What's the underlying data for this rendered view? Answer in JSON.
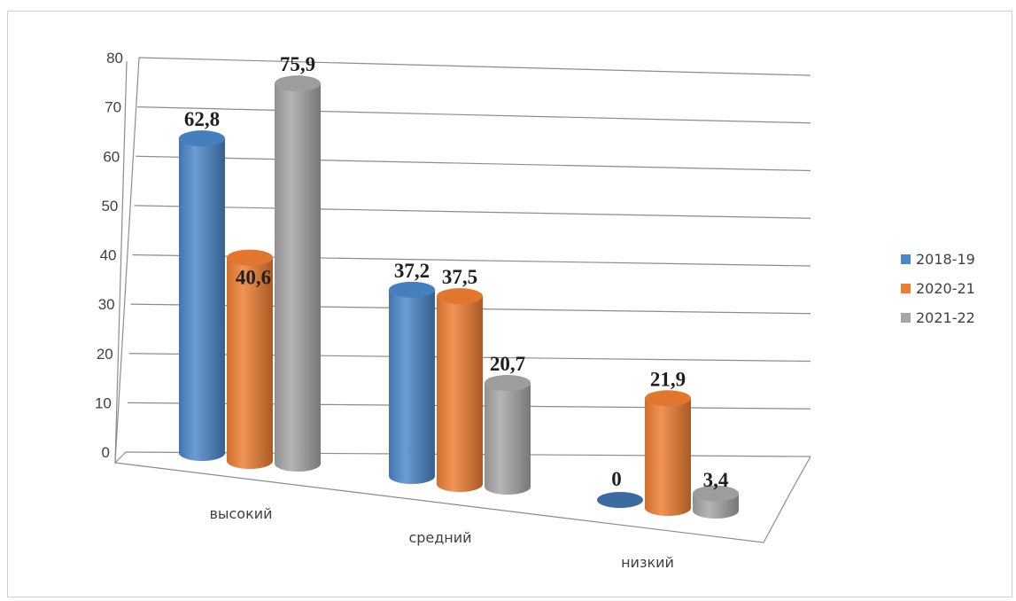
{
  "chart_data": {
    "type": "bar",
    "style": "3d-cylinder",
    "categories": [
      "высокий",
      "средний",
      "низкий"
    ],
    "series": [
      {
        "name": "2018-19",
        "values": [
          62.8,
          37.2,
          0
        ],
        "labels": [
          "62,8",
          "37,2",
          "0"
        ],
        "color": "#4a86c8"
      },
      {
        "name": "2020-21",
        "values": [
          40.6,
          37.5,
          21.9
        ],
        "labels": [
          "40,6",
          "37,5",
          "21,9"
        ],
        "color": "#ed7d31"
      },
      {
        "name": "2021-22",
        "values": [
          75.9,
          20.7,
          3.4
        ],
        "labels": [
          "75,9",
          "20,7",
          "3,4"
        ],
        "color": "#a5a5a5"
      }
    ],
    "yticks": [
      "0",
      "10",
      "20",
      "30",
      "40",
      "50",
      "60",
      "70",
      "80"
    ],
    "ylim": [
      0,
      80
    ],
    "grid": true,
    "legend_position": "right"
  }
}
